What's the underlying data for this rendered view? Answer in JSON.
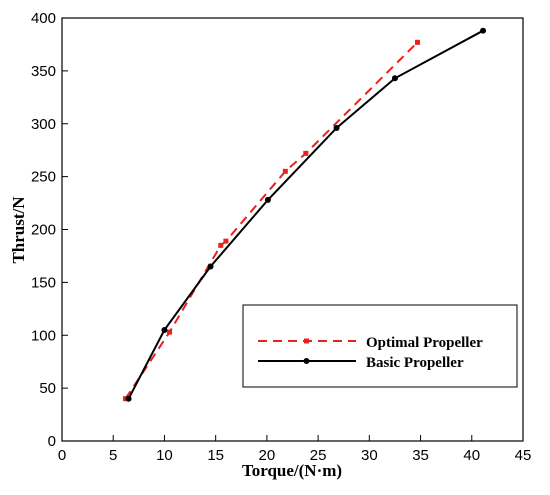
{
  "chart_data": {
    "type": "line",
    "title": "",
    "xlabel": "Torque/(N·m)",
    "ylabel": "Thrust/N",
    "xlim": [
      0,
      45
    ],
    "ylim": [
      0,
      400
    ],
    "xticks": [
      0,
      5,
      10,
      15,
      20,
      25,
      30,
      35,
      40,
      45
    ],
    "yticks": [
      0,
      50,
      100,
      150,
      200,
      250,
      300,
      350,
      400
    ],
    "grid": false,
    "legend_position": "bottom-right",
    "series": [
      {
        "name": "Optimal Propeller",
        "color": "#e8221f",
        "line_style": "dashed",
        "marker": "square",
        "points": [
          {
            "x": 6.2,
            "y": 40
          },
          {
            "x": 10.5,
            "y": 103
          },
          {
            "x": 15.5,
            "y": 185
          },
          {
            "x": 16.0,
            "y": 189
          },
          {
            "x": 21.8,
            "y": 255
          },
          {
            "x": 23.8,
            "y": 272
          },
          {
            "x": 34.7,
            "y": 377
          }
        ]
      },
      {
        "name": "Basic Propeller",
        "color": "#000000",
        "line_style": "solid",
        "marker": "circle",
        "points": [
          {
            "x": 6.5,
            "y": 40
          },
          {
            "x": 10.0,
            "y": 105
          },
          {
            "x": 14.5,
            "y": 165
          },
          {
            "x": 20.1,
            "y": 228
          },
          {
            "x": 26.8,
            "y": 296
          },
          {
            "x": 32.5,
            "y": 343
          },
          {
            "x": 41.1,
            "y": 388
          }
        ]
      }
    ]
  }
}
